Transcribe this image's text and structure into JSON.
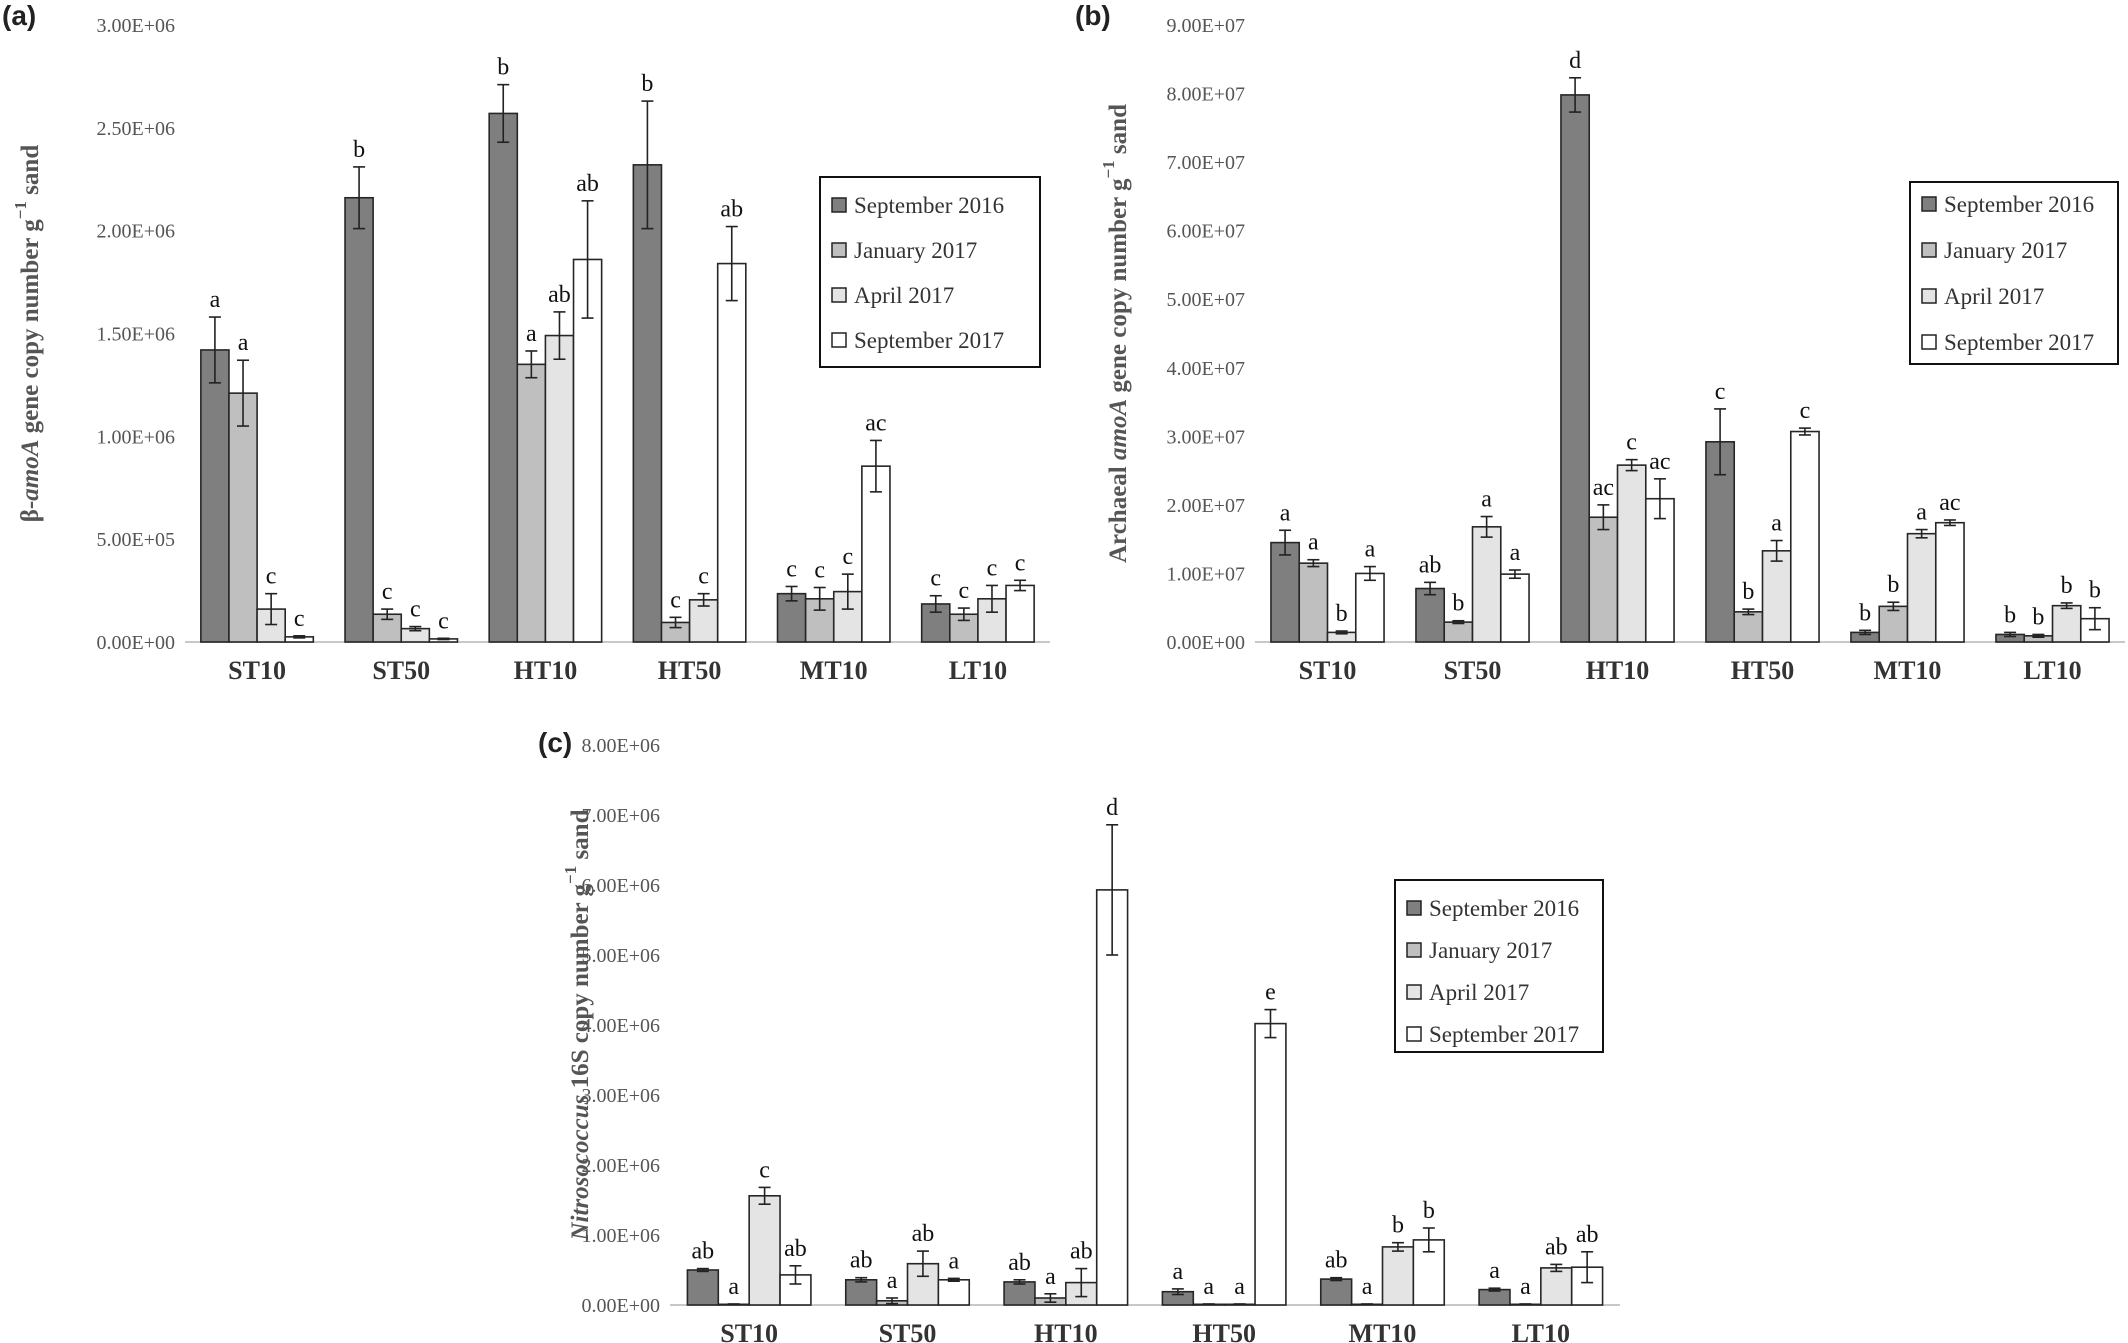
{
  "chart_data": [
    {
      "panel": "(a)",
      "type": "bar",
      "ylabel_parts": [
        "β-",
        "amoA",
        " gene copy number g",
        "−1",
        " sand"
      ],
      "ylim": [
        0,
        3000000
      ],
      "yticks": [
        "0.00E+00",
        "5.00E+05",
        "1.00E+06",
        "1.50E+06",
        "2.00E+06",
        "2.50E+06",
        "3.00E+06"
      ],
      "categories": [
        "ST10",
        "ST50",
        "HT10",
        "HT50",
        "MT10",
        "LT10"
      ],
      "series": [
        {
          "name": "September 2016",
          "color": "#7f7f7f",
          "values": [
            1420000,
            2160000,
            2570000,
            2320000,
            235000,
            185000
          ],
          "errors": [
            160000,
            150000,
            140000,
            310000,
            35000,
            40000
          ],
          "labels": [
            "a",
            "b",
            "b",
            "b",
            "c",
            "c"
          ]
        },
        {
          "name": "January 2017",
          "color": "#bfbfbf",
          "values": [
            1210000,
            135000,
            1350000,
            95000,
            210000,
            135000
          ],
          "errors": [
            160000,
            25000,
            65000,
            25000,
            55000,
            30000
          ],
          "labels": [
            "a",
            "c",
            "a",
            "c",
            "c",
            "c"
          ]
        },
        {
          "name": "April 2017",
          "color": "#e4e4e4",
          "values": [
            160000,
            65000,
            1490000,
            205000,
            245000,
            210000
          ],
          "errors": [
            75000,
            10000,
            115000,
            30000,
            85000,
            65000
          ],
          "labels": [
            "c",
            "c",
            "ab",
            "c",
            "c",
            "c"
          ]
        },
        {
          "name": "September 2017",
          "color": "#ffffff",
          "values": [
            25000,
            15000,
            1860000,
            1840000,
            855000,
            275000
          ],
          "errors": [
            5000,
            3000,
            285000,
            180000,
            125000,
            25000
          ],
          "labels": [
            "c",
            "c",
            "ab",
            "ab",
            "ac",
            "c"
          ]
        }
      ],
      "legend_position": "top-right"
    },
    {
      "panel": "(b)",
      "type": "bar",
      "ylabel_parts": [
        "Archaeal ",
        "amoA",
        " gene copy number g",
        "−1",
        " sand"
      ],
      "ylim": [
        0,
        90000000
      ],
      "yticks": [
        "0.00E+00",
        "1.00E+07",
        "2.00E+07",
        "3.00E+07",
        "4.00E+07",
        "5.00E+07",
        "6.00E+07",
        "7.00E+07",
        "8.00E+07",
        "9.00E+07"
      ],
      "categories": [
        "ST10",
        "ST50",
        "HT10",
        "HT50",
        "MT10",
        "LT10"
      ],
      "series": [
        {
          "name": "September 2016",
          "color": "#7f7f7f",
          "values": [
            14500000,
            7800000,
            79800000,
            29200000,
            1400000,
            1100000
          ],
          "errors": [
            1800000,
            900000,
            2500000,
            4800000,
            300000,
            300000
          ],
          "labels": [
            "a",
            "ab",
            "d",
            "c",
            "b",
            "b"
          ]
        },
        {
          "name": "January 2017",
          "color": "#bfbfbf",
          "values": [
            11500000,
            2900000,
            18200000,
            4400000,
            5200000,
            900000
          ],
          "errors": [
            500000,
            200000,
            1800000,
            400000,
            600000,
            200000
          ],
          "labels": [
            "a",
            "b",
            "ac",
            "b",
            "b",
            "b"
          ]
        },
        {
          "name": "April 2017",
          "color": "#e4e4e4",
          "values": [
            1400000,
            16800000,
            25800000,
            13300000,
            15800000,
            5300000
          ],
          "errors": [
            200000,
            1500000,
            800000,
            1500000,
            600000,
            400000
          ],
          "labels": [
            "b",
            "a",
            "c",
            "a",
            "a",
            "b"
          ]
        },
        {
          "name": "September 2017",
          "color": "#ffffff",
          "values": [
            10000000,
            9900000,
            20900000,
            30700000,
            17400000,
            3400000
          ],
          "errors": [
            1000000,
            600000,
            2900000,
            500000,
            400000,
            1600000
          ],
          "labels": [
            "a",
            "a",
            "ac",
            "c",
            "ac",
            "b"
          ]
        }
      ],
      "legend_position": "top-right"
    },
    {
      "panel": "(c)",
      "type": "bar",
      "ylabel_parts": [
        "Nitrosococcus",
        " 16S copy number g",
        "−1",
        " sand"
      ],
      "ylim": [
        0,
        8000000
      ],
      "yticks": [
        "0.00E+00",
        "1.00E+06",
        "2.00E+06",
        "3.00E+06",
        "4.00E+06",
        "5.00E+06",
        "6.00E+06",
        "7.00E+06",
        "8.00E+06"
      ],
      "categories": [
        "ST10",
        "ST50",
        "HT10",
        "HT50",
        "MT10",
        "LT10"
      ],
      "series": [
        {
          "name": "September 2016",
          "color": "#7f7f7f",
          "values": [
            500000,
            360000,
            330000,
            190000,
            370000,
            220000
          ],
          "errors": [
            20000,
            30000,
            30000,
            40000,
            20000,
            20000
          ],
          "labels": [
            "ab",
            "ab",
            "ab",
            "a",
            "ab",
            "a"
          ]
        },
        {
          "name": "January 2017",
          "color": "#bfbfbf",
          "values": [
            10000,
            60000,
            100000,
            10000,
            10000,
            10000
          ],
          "errors": [
            5000,
            40000,
            60000,
            5000,
            5000,
            5000
          ],
          "labels": [
            "a",
            "a",
            "a",
            "a",
            "a",
            "a"
          ]
        },
        {
          "name": "April 2017",
          "color": "#e4e4e4",
          "values": [
            1560000,
            590000,
            320000,
            10000,
            830000,
            530000
          ],
          "errors": [
            120000,
            180000,
            200000,
            5000,
            60000,
            50000
          ],
          "labels": [
            "c",
            "ab",
            "ab",
            "a",
            "b",
            "ab"
          ]
        },
        {
          "name": "September 2017",
          "color": "#ffffff",
          "values": [
            430000,
            360000,
            5930000,
            4020000,
            930000,
            540000
          ],
          "errors": [
            130000,
            20000,
            930000,
            200000,
            170000,
            220000
          ],
          "labels": [
            "ab",
            "a",
            "d",
            "e",
            "b",
            "ab"
          ]
        }
      ],
      "legend_position": "top-right"
    }
  ]
}
